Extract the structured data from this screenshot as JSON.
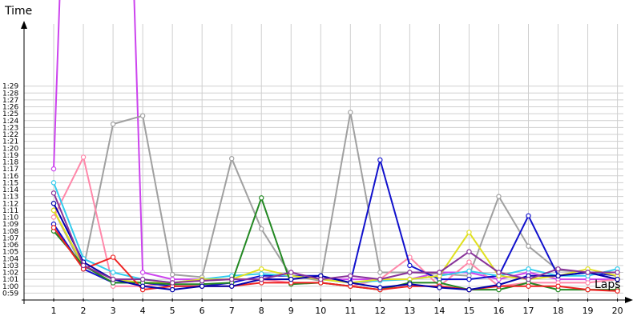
{
  "chart_data": {
    "type": "line",
    "title": "",
    "xlabel": "Laps",
    "ylabel": "Time",
    "x": [
      1,
      2,
      3,
      4,
      5,
      6,
      7,
      8,
      9,
      10,
      11,
      12,
      13,
      14,
      15,
      16,
      17,
      18,
      19,
      20
    ],
    "xlim": [
      0,
      20.2
    ],
    "ylim_seconds": [
      58,
      98
    ],
    "y_tick_labels": [
      "0:59",
      "1:00",
      "1:01",
      "1:02",
      "1:03",
      "1:04",
      "1:05",
      "1:06",
      "1:07",
      "1:08",
      "1:09",
      "1:10",
      "1:11",
      "1:12",
      "1:13",
      "1:14",
      "1:15",
      "1:16",
      "1:17",
      "1:18",
      "1:19",
      "1:20",
      "1:21",
      "1:22",
      "1:23",
      "1:24",
      "1:25",
      "1:26",
      "1:27",
      "1:28",
      "1:29"
    ],
    "y_unit": "seconds (labels shown as m:ss)",
    "grid": true,
    "legend": "none",
    "series": [
      {
        "color": "#cc44ee",
        "values": [
          77,
          200,
          200,
          62,
          61,
          61,
          61,
          61,
          62,
          61,
          61,
          61,
          61,
          62,
          62,
          61,
          62,
          61,
          61,
          61
        ]
      },
      {
        "color": "#a0a0a0",
        "values": [
          71,
          62.5,
          83.5,
          84.7,
          61.7,
          61.3,
          78.5,
          68.3,
          61.5,
          60.8,
          85.2,
          62,
          62,
          61.8,
          61.5,
          73,
          65.8,
          62.3,
          62,
          61
        ]
      },
      {
        "color": "#ff88aa",
        "values": [
          70,
          78.7,
          60,
          60,
          60.5,
          60.8,
          61,
          61,
          60.5,
          60.5,
          60,
          61,
          64.2,
          60,
          63.5,
          60,
          60.5,
          60.5,
          60.5,
          61
        ]
      },
      {
        "color": "#1010cc",
        "values": [
          69,
          62.5,
          60.5,
          60.5,
          60,
          60,
          60.5,
          61.5,
          61.5,
          61.5,
          60.5,
          78.3,
          63,
          61,
          61,
          61.5,
          70.2,
          61.5,
          62,
          61.5
        ]
      },
      {
        "color": "#33ccee",
        "values": [
          75,
          64,
          62,
          61,
          60.5,
          61,
          61.5,
          61.8,
          61.5,
          61,
          60.5,
          60.8,
          61,
          61.5,
          62.2,
          61.5,
          62.5,
          61.5,
          61.5,
          62.5
        ]
      },
      {
        "color": "#e0e020",
        "values": [
          71,
          63,
          61,
          60.5,
          60.5,
          61,
          61,
          62.5,
          61.5,
          61,
          60.5,
          61,
          61,
          61.5,
          67.8,
          61.5,
          61,
          61.5,
          62.5,
          61.5
        ]
      },
      {
        "color": "#228822",
        "values": [
          68,
          63,
          60.5,
          60.5,
          60.3,
          60.3,
          60.5,
          72.8,
          60.3,
          60.5,
          60,
          59.5,
          60.5,
          60.5,
          59.5,
          59.5,
          60.5,
          59.5,
          59.5,
          59.5
        ]
      },
      {
        "color": "#ee2222",
        "values": [
          68.5,
          62.5,
          64.2,
          59.5,
          60,
          60,
          60,
          60.5,
          60.5,
          60.5,
          60,
          59.5,
          60,
          60,
          59.5,
          60,
          60,
          60,
          59.5,
          59.3
        ]
      },
      {
        "color": "#0000aa",
        "values": [
          72,
          63.5,
          61,
          60,
          59.5,
          60,
          60,
          61,
          61,
          61.5,
          60.5,
          59.8,
          60.3,
          59.8,
          59.5,
          60.2,
          61.5,
          61.5,
          62,
          61
        ]
      },
      {
        "color": "#883399",
        "values": [
          73.5,
          63,
          61,
          61,
          60.5,
          60.8,
          61,
          61,
          62,
          61,
          61.5,
          61,
          62,
          62,
          65,
          62,
          61,
          62.5,
          62,
          62
        ]
      }
    ]
  }
}
